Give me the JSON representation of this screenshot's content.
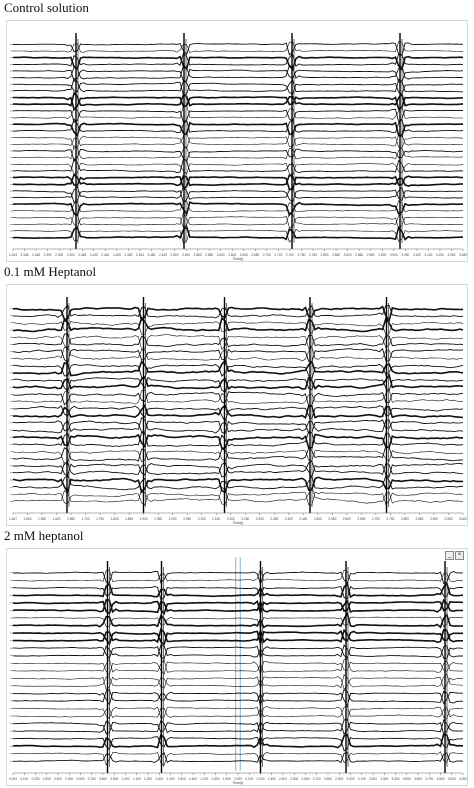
{
  "chart_data": [
    {
      "type": "line",
      "title": "Control solution",
      "xlabel": "Time(s)",
      "x_ticks": [
        "2.334",
        "2.346",
        "2.348",
        "2.390",
        "2.300",
        "2.304",
        "2.368",
        "2.430",
        "2.440",
        "2.450",
        "2.450",
        "2.454",
        "2.480",
        "2.430",
        "2.800",
        "2.540",
        "2.580",
        "2.580",
        "2.600",
        "2.604",
        "2.650",
        "2.650",
        "2.700",
        "2.720",
        "2.700",
        "2.780",
        "2.750",
        "2.800",
        "2.850",
        "2.820",
        "2.860",
        "2.980",
        "2.800",
        "3.000",
        "3.050",
        "3.100",
        "3.150",
        "3.200",
        "3.250",
        "3.280"
      ],
      "n_traces": 30,
      "beats_x_fraction": [
        0.14,
        0.38,
        0.62,
        0.86
      ],
      "window_buttons": false
    },
    {
      "type": "line",
      "title": "0.1 mM Heptanol",
      "xlabel": "Time(s)",
      "x_ticks": [
        "1.487",
        "1.500",
        "1.550",
        "1.600",
        "1.650",
        "1.700",
        "1.750",
        "1.800",
        "1.850",
        "1.900",
        "1.950",
        "2.000",
        "2.050",
        "2.100",
        "2.150",
        "2.200",
        "2.250",
        "2.300",
        "2.350",
        "2.400",
        "2.450",
        "2.500",
        "2.550",
        "2.600",
        "2.650",
        "2.700",
        "2.750",
        "2.800",
        "2.850",
        "2.900",
        "2.950",
        "3.000"
      ],
      "n_traces": 28,
      "beats_x_fraction": [
        0.12,
        0.29,
        0.47,
        0.66,
        0.83
      ],
      "window_buttons": false
    },
    {
      "type": "line",
      "title": "2 mM heptanol",
      "xlabel": "Time(s)",
      "x_ticks": [
        "0.000",
        "0.100",
        "0.200",
        "0.300",
        "0.400",
        "0.500",
        "0.600",
        "0.700",
        "0.800",
        "0.900",
        "1.000",
        "1.100",
        "1.200",
        "1.300",
        "1.400",
        "1.500",
        "1.600",
        "1.700",
        "1.800",
        "1.900",
        "2.000",
        "2.100",
        "2.200",
        "2.300",
        "2.400",
        "2.500",
        "2.600",
        "2.700",
        "2.800",
        "2.900",
        "3.000",
        "3.100",
        "3.200",
        "3.300",
        "3.400",
        "3.500",
        "3.600",
        "3.700",
        "3.800",
        "3.900",
        "4.000"
      ],
      "n_traces": 26,
      "beats_x_fraction": [
        0.21,
        0.33,
        0.55,
        0.74,
        0.96
      ],
      "window_buttons": true,
      "marker_color": "#7fb7d6"
    }
  ]
}
